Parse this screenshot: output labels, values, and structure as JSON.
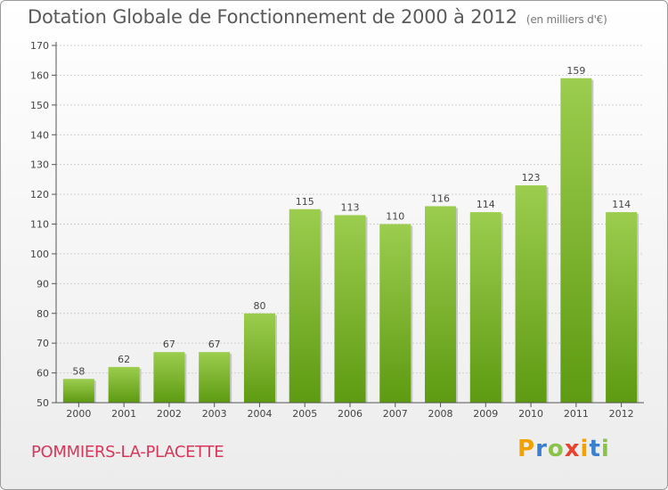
{
  "header": {
    "title": "Dotation Globale de Fonctionnement de 2000 à 2012",
    "subtitle": "(en milliers d'€)"
  },
  "footer": {
    "commune": "POMMIERS-LA-PLACETTE",
    "logo": "Proxiti"
  },
  "colors": {
    "bar_top": "#9ccd4e",
    "bar_bottom": "#5e9a12",
    "commune": "#d6375a"
  },
  "chart_data": {
    "type": "bar",
    "categories": [
      "2000",
      "2001",
      "2002",
      "2003",
      "2004",
      "2005",
      "2006",
      "2007",
      "2008",
      "2009",
      "2010",
      "2011",
      "2012"
    ],
    "values": [
      58,
      62,
      67,
      67,
      80,
      115,
      113,
      110,
      116,
      114,
      123,
      159,
      114
    ],
    "title": "Dotation Globale de Fonctionnement de 2000 à 2012",
    "subtitle": "(en milliers d'€)",
    "xlabel": "",
    "ylabel": "",
    "ylim": [
      50,
      170
    ],
    "yticks": [
      50,
      60,
      70,
      80,
      90,
      100,
      110,
      120,
      130,
      140,
      150,
      160,
      170
    ],
    "grid": true
  }
}
